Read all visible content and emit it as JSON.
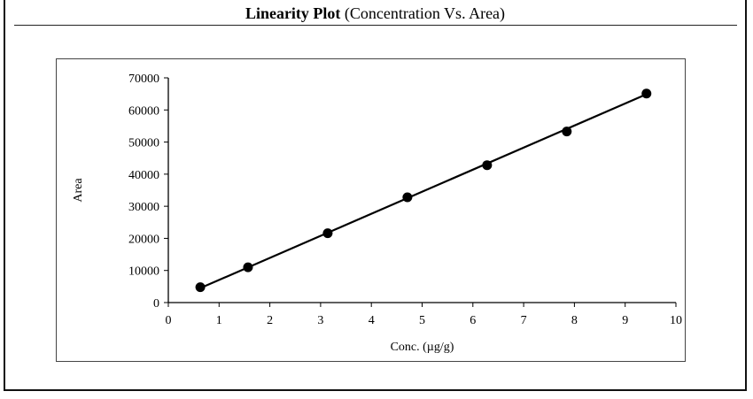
{
  "header": {
    "title_bold": "Linearity Plot",
    "title_rest": " (Concentration Vs. Area)"
  },
  "chart_data": {
    "type": "scatter",
    "title": "",
    "xlabel": "Conc. (µg/g)",
    "ylabel": "Area",
    "xlim": [
      0,
      10
    ],
    "ylim": [
      0,
      70000
    ],
    "x_ticks": [
      0,
      1,
      2,
      3,
      4,
      5,
      6,
      7,
      8,
      9,
      10
    ],
    "y_ticks": [
      0,
      10000,
      20000,
      30000,
      40000,
      50000,
      60000,
      70000
    ],
    "grid": false,
    "legend": "none",
    "series": [
      {
        "x": [
          0.63,
          1.57,
          3.14,
          4.71,
          6.28,
          7.85,
          9.42
        ],
        "y": [
          4800,
          11000,
          21600,
          32800,
          42800,
          53300,
          65100
        ]
      }
    ],
    "trendline": {
      "type": "linear",
      "x": [
        0.63,
        9.42
      ],
      "y": [
        4500,
        64900
      ]
    },
    "colors": {
      "marker": "#000000",
      "line": "#000000",
      "axis": "#000000"
    }
  }
}
